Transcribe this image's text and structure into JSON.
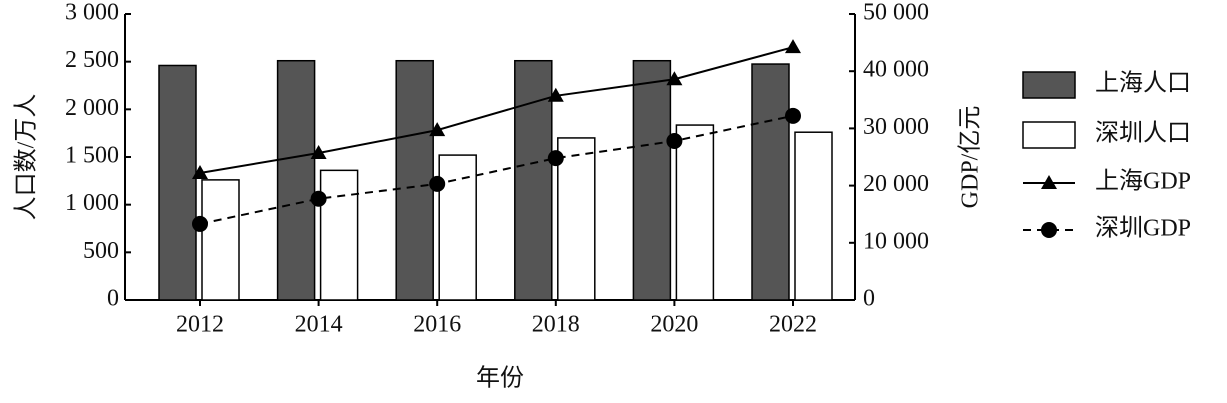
{
  "chart_data": {
    "type": "bar_line",
    "x_label": "年份",
    "y_label": "人口数/万人",
    "y2_label": "GDP/亿元",
    "categories": [
      "2012",
      "2014",
      "2016",
      "2018",
      "2020",
      "2022"
    ],
    "ylim": [
      0,
      3000
    ],
    "yticks": [
      0,
      500,
      {
        "value": 1000,
        "label": "1 000"
      },
      {
        "value": 1500,
        "label": "1 500"
      },
      {
        "value": 2000,
        "label": "2 000"
      },
      {
        "value": 2500,
        "label": "2 500"
      },
      {
        "value": 3000,
        "label": "3 000"
      }
    ],
    "y2lim": [
      0,
      50000
    ],
    "y2ticks": [
      0,
      {
        "value": 10000,
        "label": "10 000"
      },
      {
        "value": 20000,
        "label": "20 000"
      },
      {
        "value": 30000,
        "label": "30 000"
      },
      {
        "value": 40000,
        "label": "40 000"
      },
      {
        "value": 50000,
        "label": "50 000"
      }
    ],
    "series": [
      {
        "name": "上海人口",
        "kind": "bar",
        "color": "#555555",
        "values": [
          2460,
          2510,
          2510,
          2510,
          2510,
          2475
        ]
      },
      {
        "name": "深圳人口",
        "kind": "bar",
        "color": "#ffffff",
        "values": [
          1260,
          1360,
          1520,
          1700,
          1835,
          1760
        ]
      },
      {
        "name": "上海GDP",
        "kind": "line",
        "axis": "y2",
        "color": "#000000",
        "marker": "triangle",
        "dash": "solid",
        "values": [
          22200,
          25700,
          29700,
          35700,
          38600,
          44200
        ]
      },
      {
        "name": "深圳GDP",
        "kind": "line",
        "axis": "y2",
        "color": "#000000",
        "marker": "circle",
        "dash": "dashed",
        "values": [
          13300,
          17700,
          20300,
          24800,
          27800,
          32200
        ]
      }
    ],
    "legend": "right"
  }
}
